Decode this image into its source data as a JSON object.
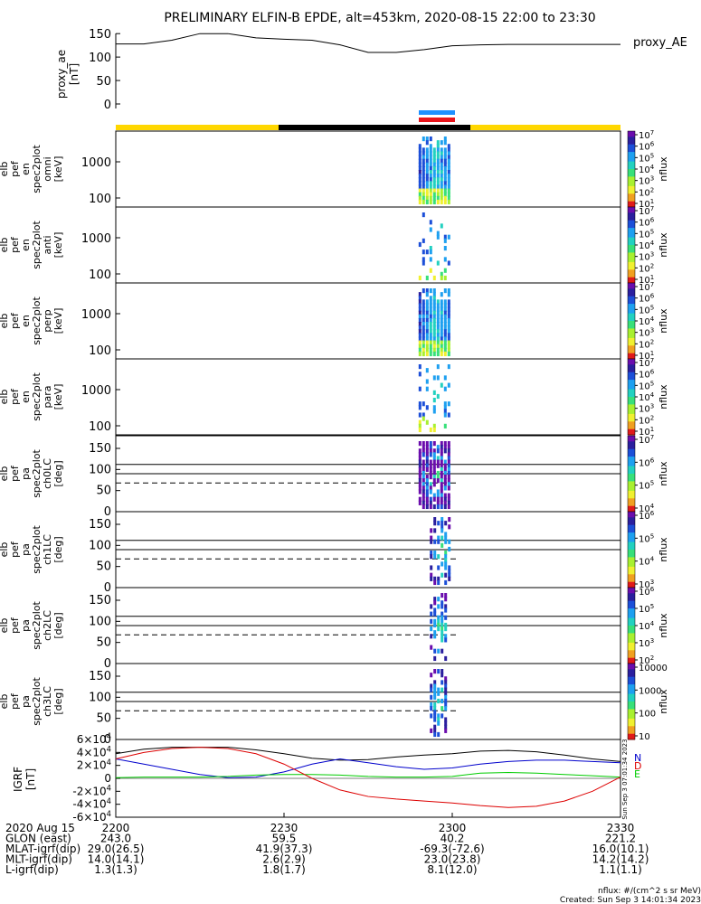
{
  "title": "PRELIMINARY ELFIN-B EPDE, alt=453km, 2020-08-15 22:00 to 23:30",
  "colors": {
    "bar_yellow": "#ffd700",
    "bar_black": "#000000",
    "sci_blue": "#1e90ff",
    "sci_red": "#e8141b",
    "igrf_n": "#0000cc",
    "igrf_e": "#00cc00",
    "igrf_d": "#dd0000",
    "igrf_total": "#000000"
  },
  "chart_data": [
    {
      "type": "line",
      "id": "proxy_ae",
      "ylabel_lines": [
        "proxy_ae",
        "[nT]"
      ],
      "legend": "proxy_AE",
      "ylim": [
        0,
        160
      ],
      "yticks": [
        "0",
        "50",
        "100",
        "150"
      ],
      "x": [
        "22:00",
        "22:05",
        "22:10",
        "22:15",
        "22:20",
        "22:25",
        "22:30",
        "22:35",
        "22:40",
        "22:45",
        "22:50",
        "22:55",
        "23:00",
        "23:05",
        "23:10",
        "23:15",
        "23:20",
        "23:25",
        "23:30"
      ],
      "values": [
        128,
        128,
        136,
        150,
        150,
        141,
        138,
        136,
        126,
        110,
        110,
        116,
        124,
        126,
        127,
        127,
        127,
        127,
        127
      ]
    },
    {
      "type": "heatmap",
      "id": "omni",
      "ylabel_lines": [
        "elb",
        "pef",
        "en",
        "spec2plot",
        "omni",
        "[keV]"
      ],
      "yticks": [
        "100",
        "1000"
      ],
      "colorbar": {
        "label": "nflux",
        "ticks": [
          "10^1",
          "10^2",
          "10^3",
          "10^4",
          "10^5",
          "10^6",
          "10^7"
        ]
      },
      "time_range": [
        "22:54",
        "23:00"
      ]
    },
    {
      "type": "heatmap",
      "id": "anti",
      "ylabel_lines": [
        "elb",
        "pef",
        "en",
        "spec2plot",
        "anti",
        "[keV]"
      ],
      "yticks": [
        "100",
        "1000"
      ],
      "colorbar": {
        "label": "nflux",
        "ticks": [
          "10^1",
          "10^2",
          "10^3",
          "10^4",
          "10^5",
          "10^6",
          "10^7"
        ]
      },
      "time_range": [
        "22:54",
        "23:00"
      ]
    },
    {
      "type": "heatmap",
      "id": "perp",
      "ylabel_lines": [
        "elb",
        "pef",
        "en",
        "spec2plot",
        "perp",
        "[keV]"
      ],
      "yticks": [
        "100",
        "1000"
      ],
      "colorbar": {
        "label": "nflux",
        "ticks": [
          "10^1",
          "10^2",
          "10^3",
          "10^4",
          "10^5",
          "10^6",
          "10^7"
        ]
      },
      "time_range": [
        "22:54",
        "23:00"
      ]
    },
    {
      "type": "heatmap",
      "id": "para",
      "ylabel_lines": [
        "elb",
        "pef",
        "en",
        "spec2plot",
        "para",
        "[keV]"
      ],
      "yticks": [
        "100",
        "1000"
      ],
      "colorbar": {
        "label": "nflux",
        "ticks": [
          "10^1",
          "10^2",
          "10^3",
          "10^4",
          "10^5",
          "10^6",
          "10^7"
        ]
      },
      "time_range": [
        "22:54",
        "23:00"
      ]
    },
    {
      "type": "heatmap",
      "id": "ch0LC",
      "ylabel_lines": [
        "elb",
        "pef",
        "pa",
        "spec2plot",
        "ch0LC",
        "[deg]"
      ],
      "ylim": [
        0,
        180
      ],
      "yticks": [
        "0",
        "50",
        "100",
        "150"
      ],
      "colorbar": {
        "label": "nflux",
        "ticks": [
          "10^4",
          "10^5",
          "10^6",
          "10^7"
        ]
      },
      "time_range": [
        "22:54",
        "23:00"
      ]
    },
    {
      "type": "heatmap",
      "id": "ch1LC",
      "ylabel_lines": [
        "elb",
        "pef",
        "pa",
        "spec2plot",
        "ch1LC",
        "[deg]"
      ],
      "ylim": [
        0,
        180
      ],
      "yticks": [
        "0",
        "50",
        "100",
        "150"
      ],
      "colorbar": {
        "label": "nflux",
        "ticks": [
          "10^3",
          "10^4",
          "10^5",
          "10^6"
        ]
      },
      "time_range": [
        "22:56",
        "23:00"
      ]
    },
    {
      "type": "heatmap",
      "id": "ch2LC",
      "ylabel_lines": [
        "elb",
        "pef",
        "pa",
        "spec2plot",
        "ch2LC",
        "[deg]"
      ],
      "ylim": [
        0,
        180
      ],
      "yticks": [
        "0",
        "50",
        "100",
        "150"
      ],
      "colorbar": {
        "label": "nflux",
        "ticks": [
          "10^2",
          "10^3",
          "10^4",
          "10^5",
          "10^6"
        ]
      },
      "time_range": [
        "22:56",
        "22:59"
      ]
    },
    {
      "type": "heatmap",
      "id": "ch3LC",
      "ylabel_lines": [
        "elb",
        "pef",
        "pa",
        "spec2plot",
        "ch3LC",
        "[deg]"
      ],
      "ylim": [
        0,
        180
      ],
      "yticks": [
        "0",
        "50",
        "100",
        "150"
      ],
      "colorbar": {
        "label": "nflux",
        "ticks": [
          "10",
          "100",
          "1000",
          "10000"
        ]
      },
      "time_range": [
        "22:56",
        "22:59"
      ]
    },
    {
      "type": "line",
      "id": "igrf",
      "ylabel_lines": [
        "IGRF",
        "[nT]"
      ],
      "ylim": [
        -60000,
        60000
      ],
      "yticks": [
        "-6×10^4",
        "-4×10^4",
        "-2×10^4",
        "0",
        "2×10^4",
        "4×10^4",
        "6×10^4"
      ],
      "legend": [
        "N",
        "D",
        "E"
      ],
      "x": [
        "22:00",
        "22:05",
        "22:10",
        "22:15",
        "22:20",
        "22:25",
        "22:30",
        "22:35",
        "22:40",
        "22:45",
        "22:50",
        "22:55",
        "23:00",
        "23:05",
        "23:10",
        "23:15",
        "23:20",
        "23:25",
        "23:30"
      ],
      "series": [
        {
          "values": [
            38000,
            45000,
            48000,
            48000,
            48000,
            44000,
            38000,
            31000,
            28000,
            29000,
            33000,
            36000,
            38000,
            42000,
            43000,
            41000,
            36000,
            30000,
            26000
          ]
        },
        {
          "values": [
            30000,
            22000,
            14000,
            6000,
            1000,
            2000,
            10000,
            22000,
            30000,
            24000,
            18000,
            14000,
            16000,
            22000,
            26000,
            28000,
            28000,
            26000,
            24000
          ]
        },
        {
          "values": [
            1000,
            2000,
            2000,
            2000,
            3000,
            5000,
            6000,
            6000,
            5000,
            3000,
            2000,
            2000,
            3000,
            8000,
            9000,
            8000,
            6000,
            4000,
            2000
          ]
        },
        {
          "values": [
            30000,
            40000,
            46000,
            48000,
            46000,
            38000,
            22000,
            0,
            -18000,
            -28000,
            -32000,
            -35000,
            -38000,
            -42000,
            -45000,
            -43000,
            -35000,
            -20000,
            2000
          ]
        }
      ]
    }
  ],
  "x_axis": {
    "ticks": [
      "2200",
      "2230",
      "2300",
      "2330"
    ],
    "rows": [
      {
        "label": "2020 Aug 15",
        "values": [
          "2200",
          "2230",
          "2300",
          "2330"
        ]
      },
      {
        "label": "GLON (east)",
        "values": [
          "243.0",
          "59.5",
          "40.2",
          "221.2"
        ]
      },
      {
        "label": "MLAT-igrf(dip)",
        "values": [
          "29.0(26.5)",
          "41.9(37.3)",
          "-69.3(-72.6)",
          "16.0(10.1)"
        ]
      },
      {
        "label": "MLT-igrf(dip)",
        "values": [
          "14.0(14.1)",
          "2.6(2.9)",
          "23.0(23.8)",
          "14.2(14.2)"
        ]
      },
      {
        "label": "L-igrf(dip)",
        "values": [
          "1.3(1.3)",
          "1.8(1.7)",
          "8.1(12.0)",
          "1.1(1.1)"
        ]
      }
    ]
  },
  "footer": {
    "units": "nflux: #/(cm^2 s sr MeV)",
    "created": "Created: Sun Sep  3 14:01:34 2023",
    "vertical_stamp": "Sun Sep  3 07:01:34 2023"
  }
}
